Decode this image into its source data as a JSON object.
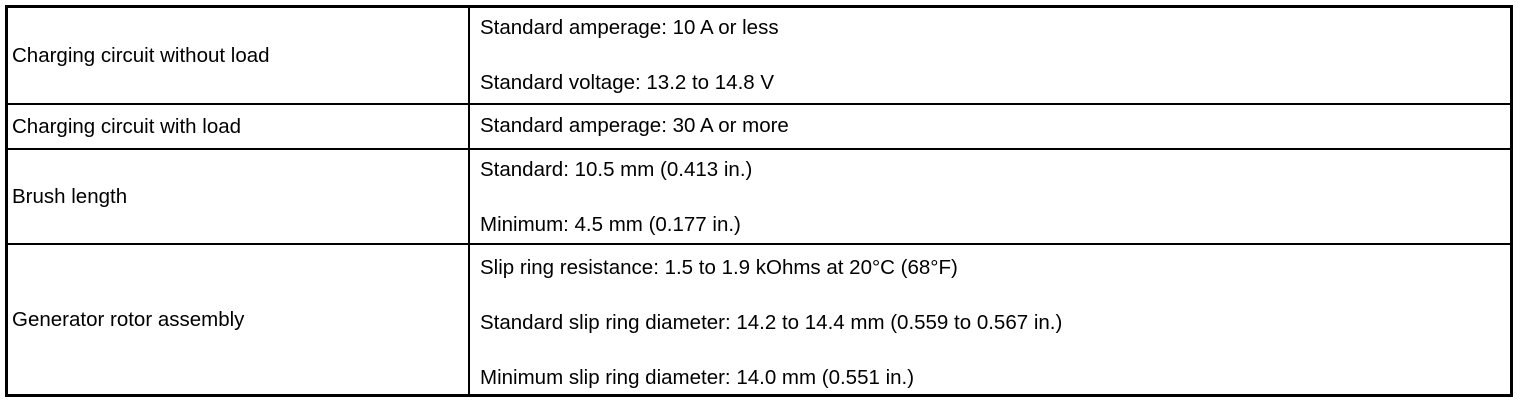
{
  "rows": [
    {
      "item": "Charging circuit without load",
      "values": [
        "Standard amperage: 10 A or less",
        "Standard voltage: 13.2 to 14.8 V"
      ]
    },
    {
      "item": "Charging circuit with load",
      "values": [
        "Standard amperage: 30 A or more"
      ]
    },
    {
      "item": "Brush length",
      "values": [
        "Standard: 10.5 mm (0.413 in.)",
        "Minimum: 4.5 mm (0.177 in.)"
      ]
    },
    {
      "item": "Generator rotor assembly",
      "values": [
        "Slip ring resistance: 1.5 to 1.9 kOhms at 20°C (68°F)",
        "Standard slip ring diameter: 14.2 to 14.4 mm (0.559 to 0.567 in.)",
        "Minimum slip ring diameter: 14.0 mm (0.551 in.)"
      ]
    }
  ]
}
